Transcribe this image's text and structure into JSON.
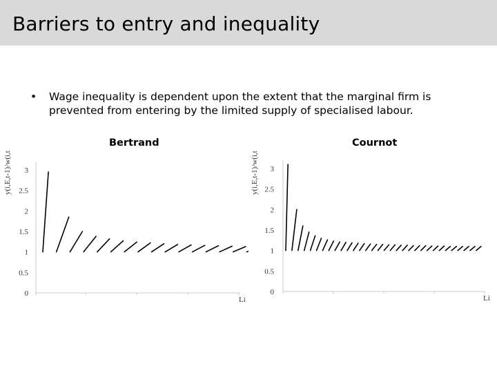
{
  "slide": {
    "title": "Barriers to entry and inequality",
    "bullet_marker": "•",
    "bullet_text": "Wage inequality is dependent upon the extent that the marginal firm is prevented from entering by the limited supply of specialised labour."
  },
  "chart_data": [
    {
      "type": "line",
      "title": "Bertrand",
      "ylabel": "y(i,E,t-1)/w(i,t)",
      "xlabel": "Li",
      "ylim": [
        0,
        3
      ],
      "yticks": [
        "0",
        "0.5",
        "1",
        "1.5",
        "2",
        "2.5",
        "3"
      ],
      "series": [
        {
          "values": [
            2.95,
            1.85,
            1.5,
            1.38,
            1.32,
            1.27,
            1.24,
            1.22,
            1.2,
            1.18,
            1.17,
            1.16,
            1.15,
            1.14,
            1.13,
            1.12
          ]
        }
      ],
      "baseline": 1
    },
    {
      "type": "line",
      "title": "Cournot",
      "ylabel": "y(i,E,t-1)/w(i,t)",
      "xlabel": "Li",
      "ylim": [
        0,
        3
      ],
      "yticks": [
        "0",
        "0.5",
        "1",
        "1.5",
        "2",
        "2.5",
        "3"
      ],
      "series": [
        {
          "values": [
            3.1,
            2.0,
            1.6,
            1.45,
            1.36,
            1.3,
            1.26,
            1.23,
            1.21,
            1.2,
            1.19,
            1.18,
            1.17,
            1.16,
            1.15,
            1.15,
            1.14,
            1.14,
            1.13,
            1.13,
            1.12,
            1.12,
            1.12,
            1.11,
            1.11,
            1.11,
            1.1,
            1.1,
            1.1,
            1.1,
            1.1,
            1.1
          ]
        }
      ],
      "baseline": 1
    }
  ]
}
